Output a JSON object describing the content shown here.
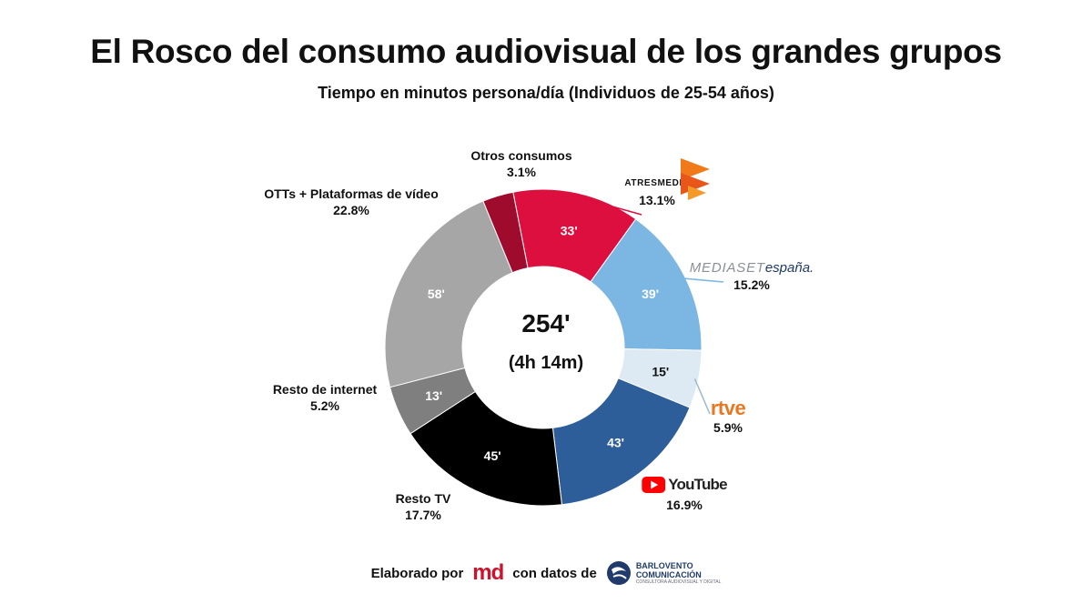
{
  "title": "El Rosco del consumo audiovisual de los grandes grupos",
  "subtitle": "Tiempo en minutos persona/día (Individuos de 25-54 años)",
  "center": {
    "total": "254'",
    "sub": "(4h 14m)"
  },
  "chart_data": {
    "type": "pie",
    "donut": true,
    "total": 254,
    "slices": [
      {
        "label": "ATRESMEDIA",
        "value": 33,
        "value_label": "33'",
        "percent": "13.1%",
        "color": "#dc0f3f"
      },
      {
        "label": "MEDIASETespaña.",
        "value": 39,
        "value_label": "39'",
        "percent": "15.2%",
        "color": "#7cb6e2"
      },
      {
        "label": "rtve",
        "value": 15,
        "value_label": "15'",
        "percent": "5.9%",
        "color": "#dde9f3"
      },
      {
        "label": "YouTube",
        "value": 43,
        "value_label": "43'",
        "percent": "16.9%",
        "color": "#2e5e9a"
      },
      {
        "label": "Resto TV",
        "value": 45,
        "value_label": "45'",
        "percent": "17.7%",
        "color": "#000000"
      },
      {
        "label": "Resto de internet",
        "value": 13,
        "value_label": "13'",
        "percent": "5.2%",
        "color": "#7f7f7f"
      },
      {
        "label": "OTTs + Plataformas de vídeo",
        "value": 58,
        "value_label": "58'",
        "percent": "22.8%",
        "color": "#a6a6a6"
      },
      {
        "label": "Otros consumos",
        "value": 8,
        "value_label": "",
        "percent": "3.1%",
        "color": "#9e0b2c"
      }
    ]
  },
  "brands": {
    "atresmedia": "ATRESMEDIA",
    "mediaset_a": "MEDIASET",
    "mediaset_b": "españa.",
    "rtve": "rtve",
    "youtube": "YouTube"
  },
  "footer": {
    "elaborado": "Elaborado por",
    "md": "md",
    "con_datos": "con datos de",
    "barlovento_1": "BARLOVENTO",
    "barlovento_2": "COMUNICACIÓN",
    "barlovento_tag": "CONSULTORA AUDIOVISUAL Y DIGITAL"
  }
}
